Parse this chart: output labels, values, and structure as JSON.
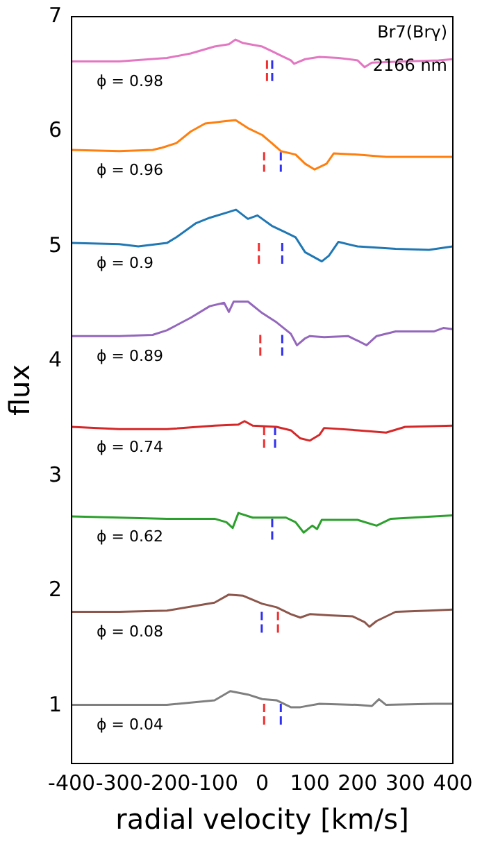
{
  "chart_data": {
    "type": "line",
    "xlabel": "radial velocity [km/s]",
    "ylabel": "flux",
    "xlim": [
      -400,
      400
    ],
    "xticks": [
      -400,
      -300,
      -200,
      -100,
      0,
      100,
      200,
      300,
      400
    ],
    "ylim": [
      0.5,
      7
    ],
    "yticks": [
      1,
      2,
      3,
      4,
      5,
      6,
      7
    ],
    "grid": false,
    "legend": false,
    "marker": "none",
    "line_style": "solid",
    "series": [
      {
        "name": "ϕ = 0.98",
        "color": "#e377c2",
        "x": [
          -400,
          -300,
          -200,
          -150,
          -100,
          -70,
          -56,
          -40,
          0,
          20,
          40,
          60,
          67,
          90,
          120,
          160,
          200,
          215,
          230,
          300,
          370,
          400
        ],
        "values": [
          6.61,
          6.61,
          6.64,
          6.68,
          6.74,
          6.76,
          6.8,
          6.77,
          6.74,
          6.7,
          6.66,
          6.62,
          6.59,
          6.63,
          6.65,
          6.64,
          6.62,
          6.56,
          6.6,
          6.61,
          6.62,
          6.63
        ]
      },
      {
        "name": "ϕ = 0.96",
        "color": "#ff7f0e",
        "x": [
          -400,
          -300,
          -230,
          -210,
          -180,
          -150,
          -120,
          -80,
          -56,
          -30,
          0,
          20,
          39,
          70,
          90,
          110,
          135,
          150,
          200,
          260,
          330,
          400
        ],
        "values": [
          5.84,
          5.83,
          5.84,
          5.86,
          5.9,
          6.0,
          6.07,
          6.09,
          6.1,
          6.03,
          5.97,
          5.9,
          5.83,
          5.8,
          5.72,
          5.67,
          5.72,
          5.81,
          5.8,
          5.78,
          5.78,
          5.78
        ]
      },
      {
        "name": "ϕ = 0.9",
        "color": "#1f77b4",
        "x": [
          -400,
          -300,
          -260,
          -200,
          -180,
          -140,
          -110,
          -70,
          -55,
          -30,
          -10,
          20,
          50,
          70,
          90,
          125,
          140,
          160,
          200,
          280,
          350,
          400
        ],
        "values": [
          5.03,
          5.02,
          5.0,
          5.03,
          5.08,
          5.2,
          5.25,
          5.3,
          5.32,
          5.24,
          5.27,
          5.18,
          5.12,
          5.08,
          4.95,
          4.87,
          4.92,
          5.04,
          5.0,
          4.98,
          4.97,
          5.0
        ]
      },
      {
        "name": "ϕ = 0.89",
        "color": "#9467bd",
        "x": [
          -400,
          -300,
          -230,
          -200,
          -150,
          -110,
          -80,
          -70,
          -60,
          -30,
          0,
          30,
          60,
          73,
          90,
          100,
          130,
          180,
          205,
          219,
          240,
          280,
          360,
          380,
          400
        ],
        "values": [
          4.22,
          4.22,
          4.23,
          4.27,
          4.38,
          4.48,
          4.51,
          4.43,
          4.52,
          4.52,
          4.42,
          4.34,
          4.24,
          4.14,
          4.2,
          4.22,
          4.21,
          4.22,
          4.17,
          4.14,
          4.22,
          4.26,
          4.26,
          4.29,
          4.28
        ]
      },
      {
        "name": "ϕ = 0.74",
        "color": "#d62728",
        "x": [
          -400,
          -300,
          -200,
          -100,
          -50,
          -37,
          -20,
          30,
          60,
          80,
          100,
          120,
          130,
          200,
          260,
          300,
          400
        ],
        "values": [
          3.43,
          3.41,
          3.41,
          3.44,
          3.45,
          3.48,
          3.44,
          3.43,
          3.4,
          3.33,
          3.31,
          3.36,
          3.42,
          3.4,
          3.38,
          3.43,
          3.44
        ]
      },
      {
        "name": "ϕ = 0.62",
        "color": "#2ca02c",
        "x": [
          -400,
          -300,
          -200,
          -100,
          -75,
          -62,
          -50,
          -20,
          20,
          50,
          70,
          87,
          105,
          115,
          125,
          160,
          200,
          240,
          270,
          400
        ],
        "values": [
          2.65,
          2.64,
          2.63,
          2.63,
          2.6,
          2.55,
          2.68,
          2.64,
          2.64,
          2.64,
          2.6,
          2.51,
          2.57,
          2.54,
          2.62,
          2.62,
          2.62,
          2.57,
          2.63,
          2.66
        ]
      },
      {
        "name": "ϕ = 0.08",
        "color": "#8c564b",
        "x": [
          -400,
          -300,
          -200,
          -100,
          -70,
          -40,
          0,
          30,
          60,
          80,
          100,
          140,
          190,
          215,
          225,
          240,
          280,
          350,
          400
        ],
        "values": [
          1.82,
          1.82,
          1.83,
          1.9,
          1.97,
          1.96,
          1.89,
          1.86,
          1.8,
          1.77,
          1.8,
          1.79,
          1.78,
          1.73,
          1.69,
          1.74,
          1.82,
          1.83,
          1.84
        ]
      },
      {
        "name": "ϕ = 0.04",
        "color": "#7f7f7f",
        "x": [
          -400,
          -200,
          -100,
          -67,
          -30,
          0,
          30,
          60,
          80,
          120,
          200,
          230,
          245,
          260,
          360,
          400
        ],
        "values": [
          1.01,
          1.01,
          1.05,
          1.13,
          1.1,
          1.06,
          1.05,
          0.99,
          0.99,
          1.02,
          1.01,
          1.0,
          1.06,
          1.01,
          1.02,
          1.02
        ]
      },
      {
        "color": "#f03030",
        "line_style": "dashed",
        "x": [
          10,
          10
        ],
        "values": [
          6.62,
          6.44
        ]
      },
      {
        "color": "#3030f0",
        "line_style": "dashed",
        "x": [
          21,
          21
        ],
        "values": [
          6.62,
          6.44
        ]
      },
      {
        "color": "#f03030",
        "line_style": "dashed",
        "x": [
          4,
          4
        ],
        "values": [
          5.82,
          5.65
        ]
      },
      {
        "color": "#3030f0",
        "line_style": "dashed",
        "x": [
          39,
          39
        ],
        "values": [
          5.82,
          5.65
        ]
      },
      {
        "color": "#f03030",
        "line_style": "dashed",
        "x": [
          -7,
          -7
        ],
        "values": [
          5.03,
          4.84
        ]
      },
      {
        "color": "#3030f0",
        "line_style": "dashed",
        "x": [
          42,
          42
        ],
        "values": [
          5.03,
          4.84
        ]
      },
      {
        "color": "#f03030",
        "line_style": "dashed",
        "x": [
          -4,
          -4
        ],
        "values": [
          4.23,
          4.02
        ]
      },
      {
        "color": "#3030f0",
        "line_style": "dashed",
        "x": [
          42,
          42
        ],
        "values": [
          4.23,
          4.02
        ]
      },
      {
        "color": "#f03030",
        "line_style": "dashed",
        "x": [
          4,
          4
        ],
        "values": [
          3.43,
          3.24
        ]
      },
      {
        "color": "#3030f0",
        "line_style": "dashed",
        "x": [
          27,
          27
        ],
        "values": [
          3.43,
          3.24
        ]
      },
      {
        "color": "#3030f0",
        "line_style": "dashed",
        "x": [
          21,
          21
        ],
        "values": [
          2.63,
          2.43
        ]
      },
      {
        "color": "#3030f0",
        "line_style": "dashed",
        "x": [
          -1,
          -1
        ],
        "values": [
          1.82,
          1.63
        ]
      },
      {
        "color": "#f03030",
        "line_style": "dashed",
        "x": [
          33,
          33
        ],
        "values": [
          1.82,
          1.63
        ]
      },
      {
        "color": "#f03030",
        "line_style": "dashed",
        "x": [
          4,
          4
        ],
        "values": [
          1.02,
          0.82
        ]
      },
      {
        "color": "#3030f0",
        "line_style": "dashed",
        "x": [
          39,
          39
        ],
        "values": [
          1.02,
          0.82
        ]
      }
    ],
    "annotations": [
      "Br7(Brγ)",
      "2166 nm"
    ]
  }
}
